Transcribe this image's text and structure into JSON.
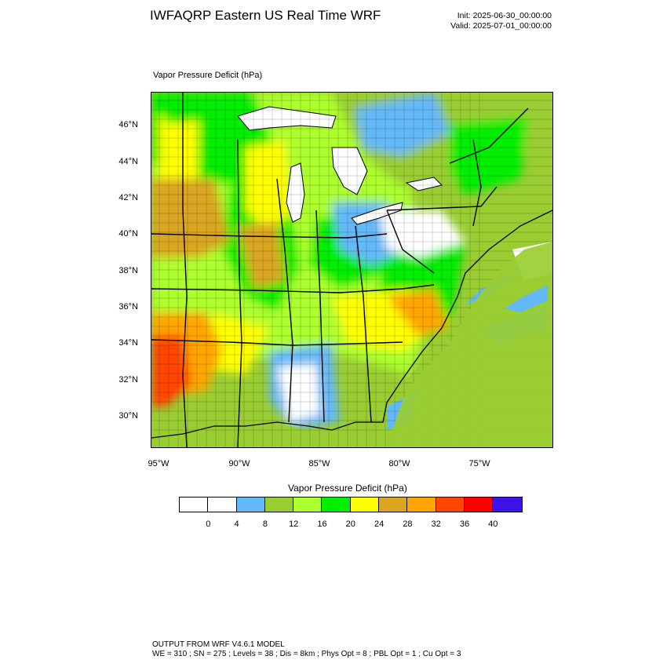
{
  "title": "IWFAQRP Eastern US Real Time WRF",
  "init": "Init: 2025-06-30_00:00:00",
  "valid": "Valid: 2025-07-01_00:00:00",
  "plot_title": "Vapor Pressure Deficit   (hPa)",
  "lat_labels": [
    "46°N",
    "44°N",
    "42°N",
    "40°N",
    "38°N",
    "36°N",
    "34°N",
    "32°N",
    "30°N"
  ],
  "lon_labels": [
    "95°W",
    "90°W",
    "85°W",
    "80°W",
    "75°W"
  ],
  "colorbar": {
    "title": "Vapor Pressure Deficit  (hPa)",
    "labels": [
      "0",
      "4",
      "8",
      "12",
      "16",
      "20",
      "24",
      "28",
      "32",
      "36",
      "40"
    ],
    "colors": [
      "#ffffff",
      "#ffffff",
      "#63b8f8",
      "#9acd32",
      "#adff2f",
      "#00ee00",
      "#ffff00",
      "#daa520",
      "#ffa500",
      "#ff4500",
      "#ff0000",
      "#3e13e8"
    ]
  },
  "footer": {
    "line1": "OUTPUT FROM WRF V4.6.1 MODEL",
    "line2": "WE = 310 ; SN = 275 ; Levels = 38 ; Dis = 8km ; Phys Opt = 8 ; PBL Opt = 1 ; Cu Opt = 3"
  }
}
